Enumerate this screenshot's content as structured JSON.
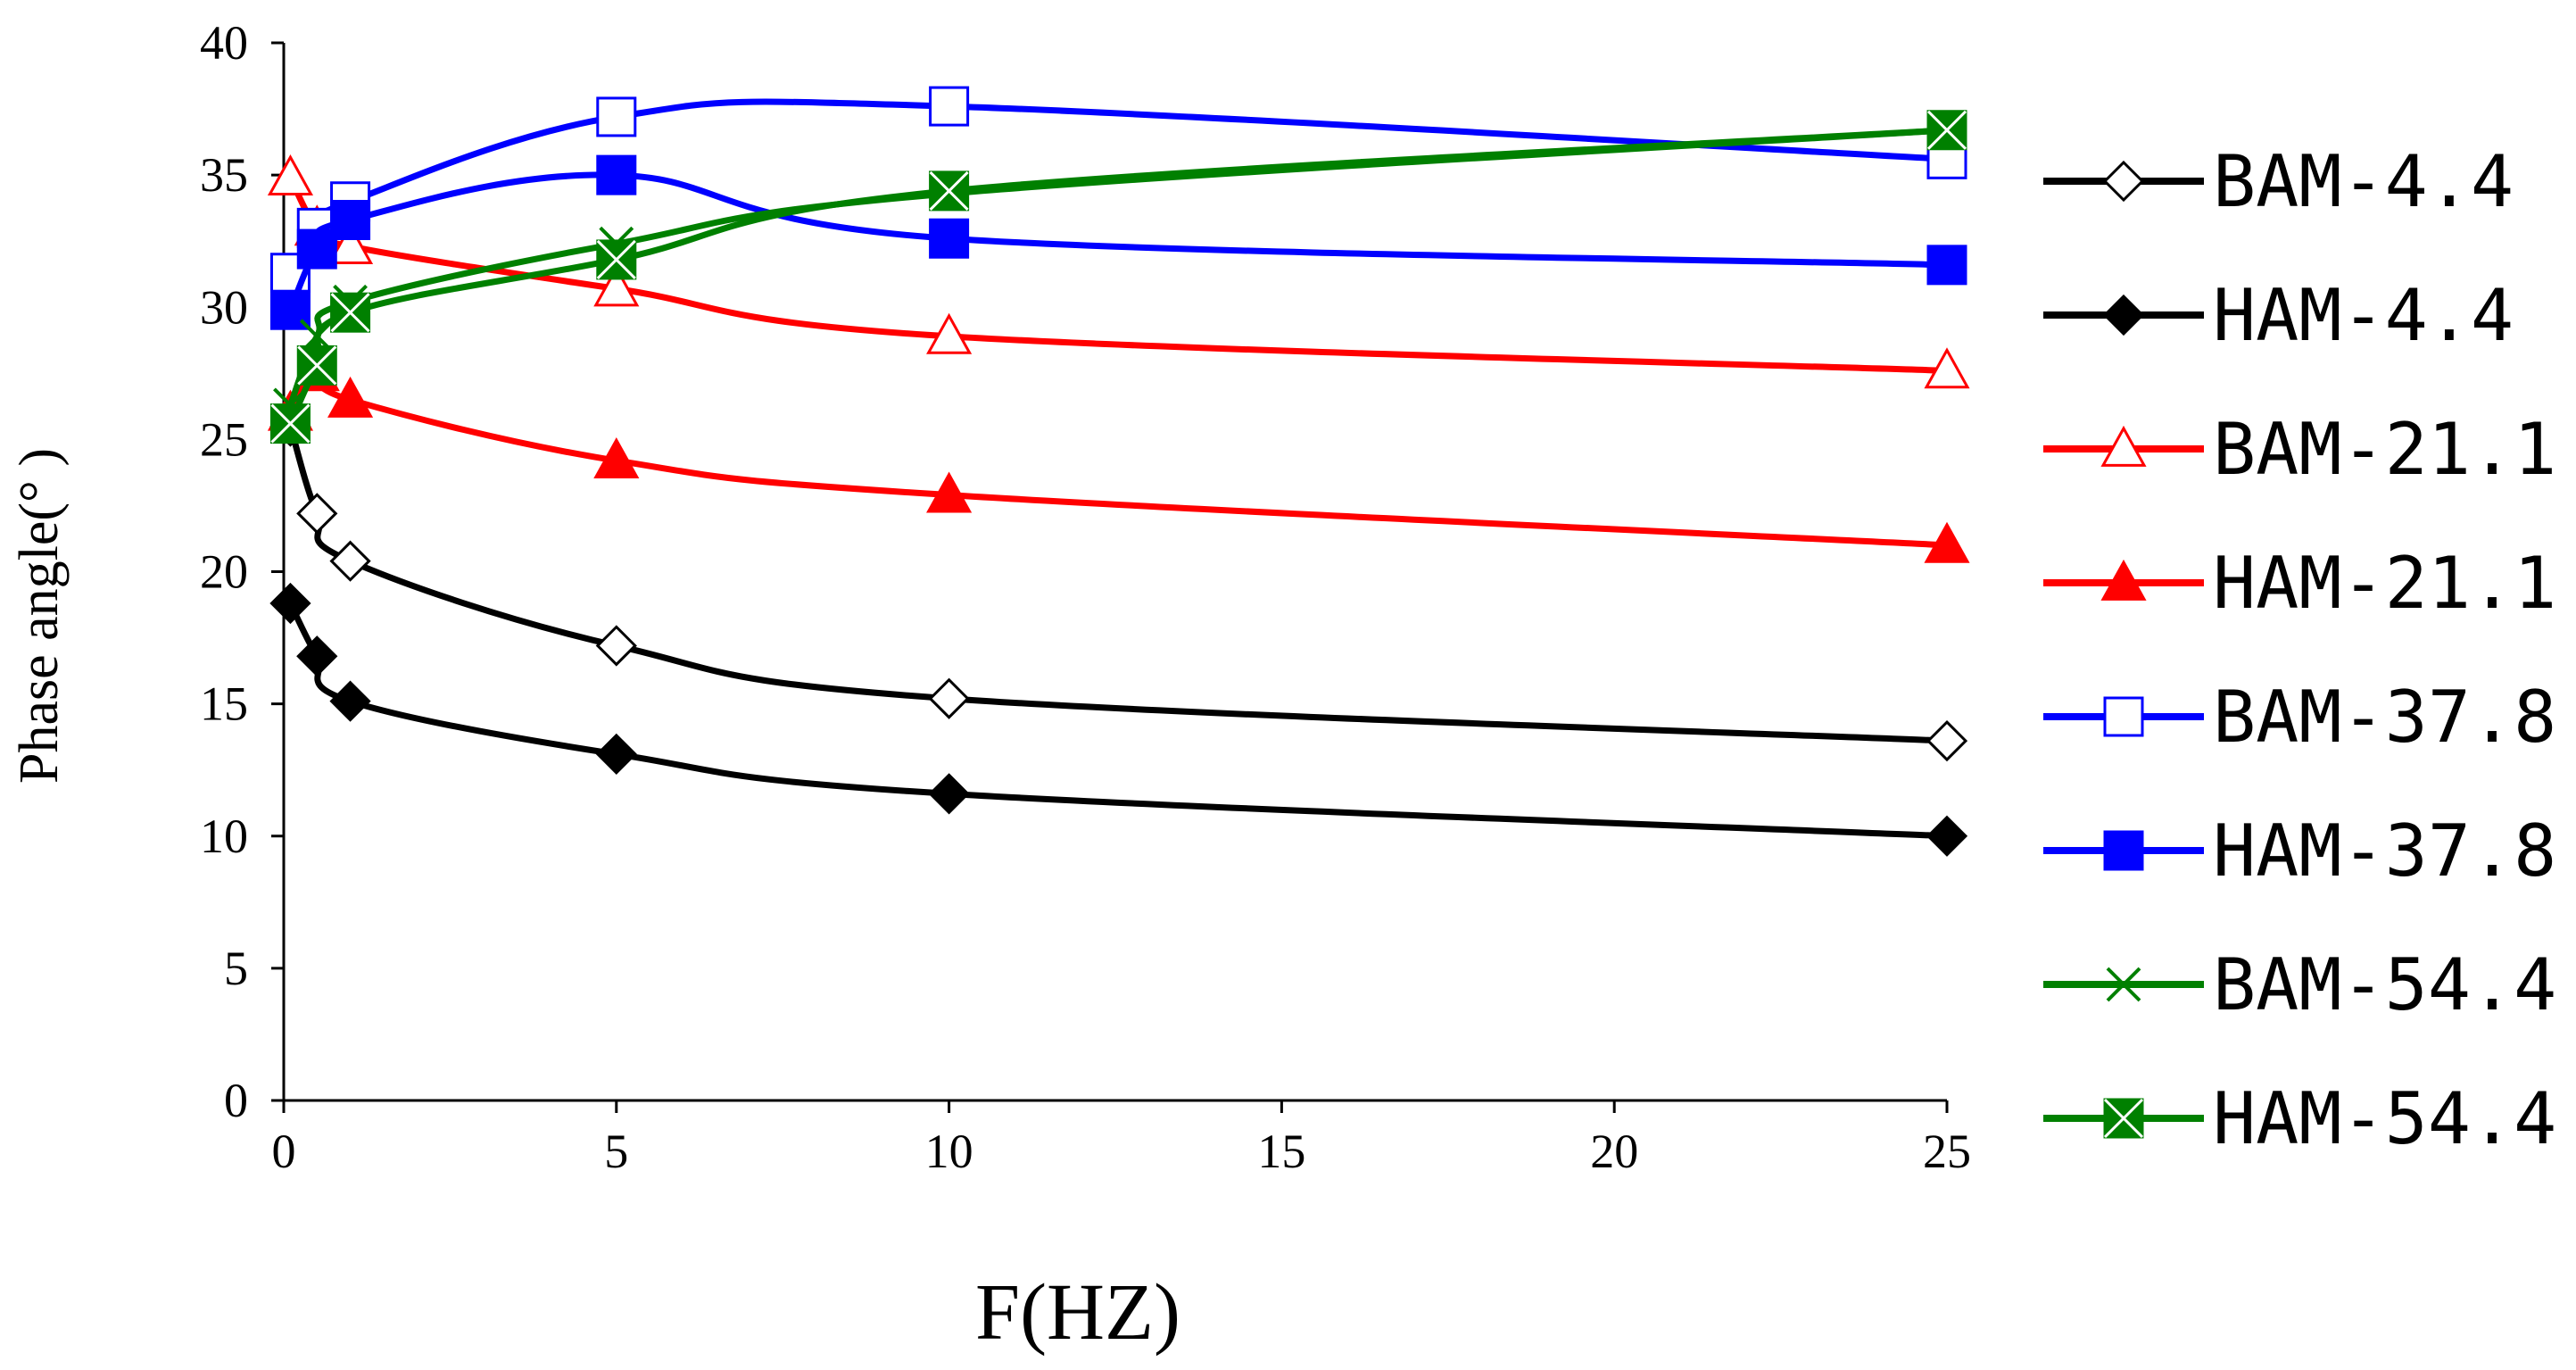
{
  "chart_data": {
    "type": "line",
    "title": "",
    "xlabel": "F(HZ)",
    "ylabel": "Phase angle(° )",
    "xlim": [
      0,
      25
    ],
    "ylim": [
      0,
      40
    ],
    "xticks": [
      0,
      5,
      10,
      15,
      20,
      25
    ],
    "yticks": [
      0,
      5,
      10,
      15,
      20,
      25,
      30,
      35,
      40
    ],
    "grid": false,
    "legend_position": "right",
    "x": [
      0.1,
      0.5,
      1,
      5,
      10,
      25
    ],
    "series": [
      {
        "name": "BAM-4.4",
        "color": "#000000",
        "marker": "diamond",
        "filled": false,
        "values": [
          25.5,
          22.2,
          20.4,
          17.2,
          15.2,
          13.6
        ]
      },
      {
        "name": "HAM-4.4",
        "color": "#000000",
        "marker": "diamond",
        "filled": true,
        "values": [
          18.8,
          16.8,
          15.1,
          13.1,
          11.6,
          10.0
        ]
      },
      {
        "name": "BAM-21.1",
        "color": "#ff0000",
        "marker": "triangle",
        "filled": false,
        "values": [
          34.9,
          33.0,
          32.3,
          30.7,
          28.9,
          27.6
        ]
      },
      {
        "name": "HAM-21.1",
        "color": "#ff0000",
        "marker": "triangle",
        "filled": true,
        "values": [
          26.0,
          27.5,
          26.5,
          24.2,
          22.9,
          21.0
        ]
      },
      {
        "name": "BAM-37.8",
        "color": "#0000ff",
        "marker": "square",
        "filled": false,
        "values": [
          31.3,
          33.0,
          34.0,
          37.2,
          37.6,
          35.6
        ]
      },
      {
        "name": "HAM-37.8",
        "color": "#0000ff",
        "marker": "square",
        "filled": true,
        "values": [
          29.9,
          32.2,
          33.3,
          35.0,
          32.6,
          31.6
        ]
      },
      {
        "name": "BAM-54.4",
        "color": "#008000",
        "marker": "x",
        "filled": false,
        "values": [
          26.3,
          28.9,
          30.2,
          32.4,
          34.3,
          36.7
        ]
      },
      {
        "name": "HAM-54.4",
        "color": "#008000",
        "marker": "box-x",
        "filled": true,
        "values": [
          25.6,
          27.8,
          29.8,
          31.8,
          34.4,
          36.7
        ]
      }
    ]
  }
}
